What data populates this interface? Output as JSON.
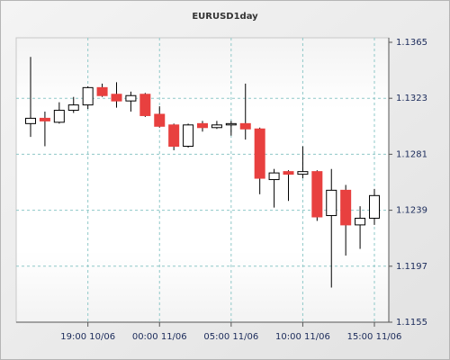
{
  "chart_data": {
    "type": "candlestick",
    "title": "EURUSD1day",
    "categories": [
      null,
      null,
      null,
      null,
      "19:00 10/06",
      null,
      null,
      null,
      null,
      "00:00 11/06",
      null,
      null,
      null,
      null,
      "05:00 11/06",
      null,
      null,
      null,
      null,
      "10:00 11/06",
      null,
      null,
      null,
      null,
      "15:00 11/06"
    ],
    "open": [
      1.1304,
      1.1308,
      1.1305,
      1.1314,
      1.1318,
      1.1331,
      1.1326,
      1.1321,
      1.1326,
      1.1311,
      1.1303,
      1.1287,
      1.1304,
      1.1301,
      1.1303,
      1.1304,
      1.13,
      1.1262,
      1.1268,
      1.1266,
      1.1268,
      1.1235,
      1.1254,
      1.1228,
      1.1233
    ],
    "high": [
      1.1354,
      1.1313,
      1.132,
      1.1324,
      1.1332,
      1.1334,
      1.1335,
      1.1328,
      1.1327,
      1.1317,
      1.1304,
      1.1304,
      1.1306,
      1.1306,
      1.1306,
      1.1334,
      1.1301,
      1.127,
      1.1269,
      1.1287,
      1.1269,
      1.127,
      1.1258,
      1.1242,
      1.1255
    ],
    "low": [
      1.1294,
      1.1287,
      1.1304,
      1.1312,
      1.1315,
      1.1324,
      1.1316,
      1.1313,
      1.1309,
      1.1301,
      1.1284,
      1.1286,
      1.1298,
      1.13,
      1.1295,
      1.1292,
      1.1251,
      1.1241,
      1.1246,
      1.1263,
      1.1231,
      1.1181,
      1.1205,
      1.121,
      1.1228
    ],
    "close": [
      1.1308,
      1.1306,
      1.1314,
      1.1318,
      1.1331,
      1.1325,
      1.1321,
      1.1325,
      1.131,
      1.1302,
      1.1287,
      1.1303,
      1.1301,
      1.1303,
      1.1304,
      1.13,
      1.1263,
      1.1267,
      1.1266,
      1.1268,
      1.1234,
      1.1254,
      1.1228,
      1.1233,
      1.125
    ],
    "up_color": "#ffffff",
    "down_color": "#e8403f",
    "edge_color": "#000000",
    "ylim": [
      1.1155,
      1.1365
    ],
    "yticks": [
      1.1155,
      1.1197,
      1.1239,
      1.1281,
      1.1323,
      1.1365
    ],
    "grid": true
  }
}
